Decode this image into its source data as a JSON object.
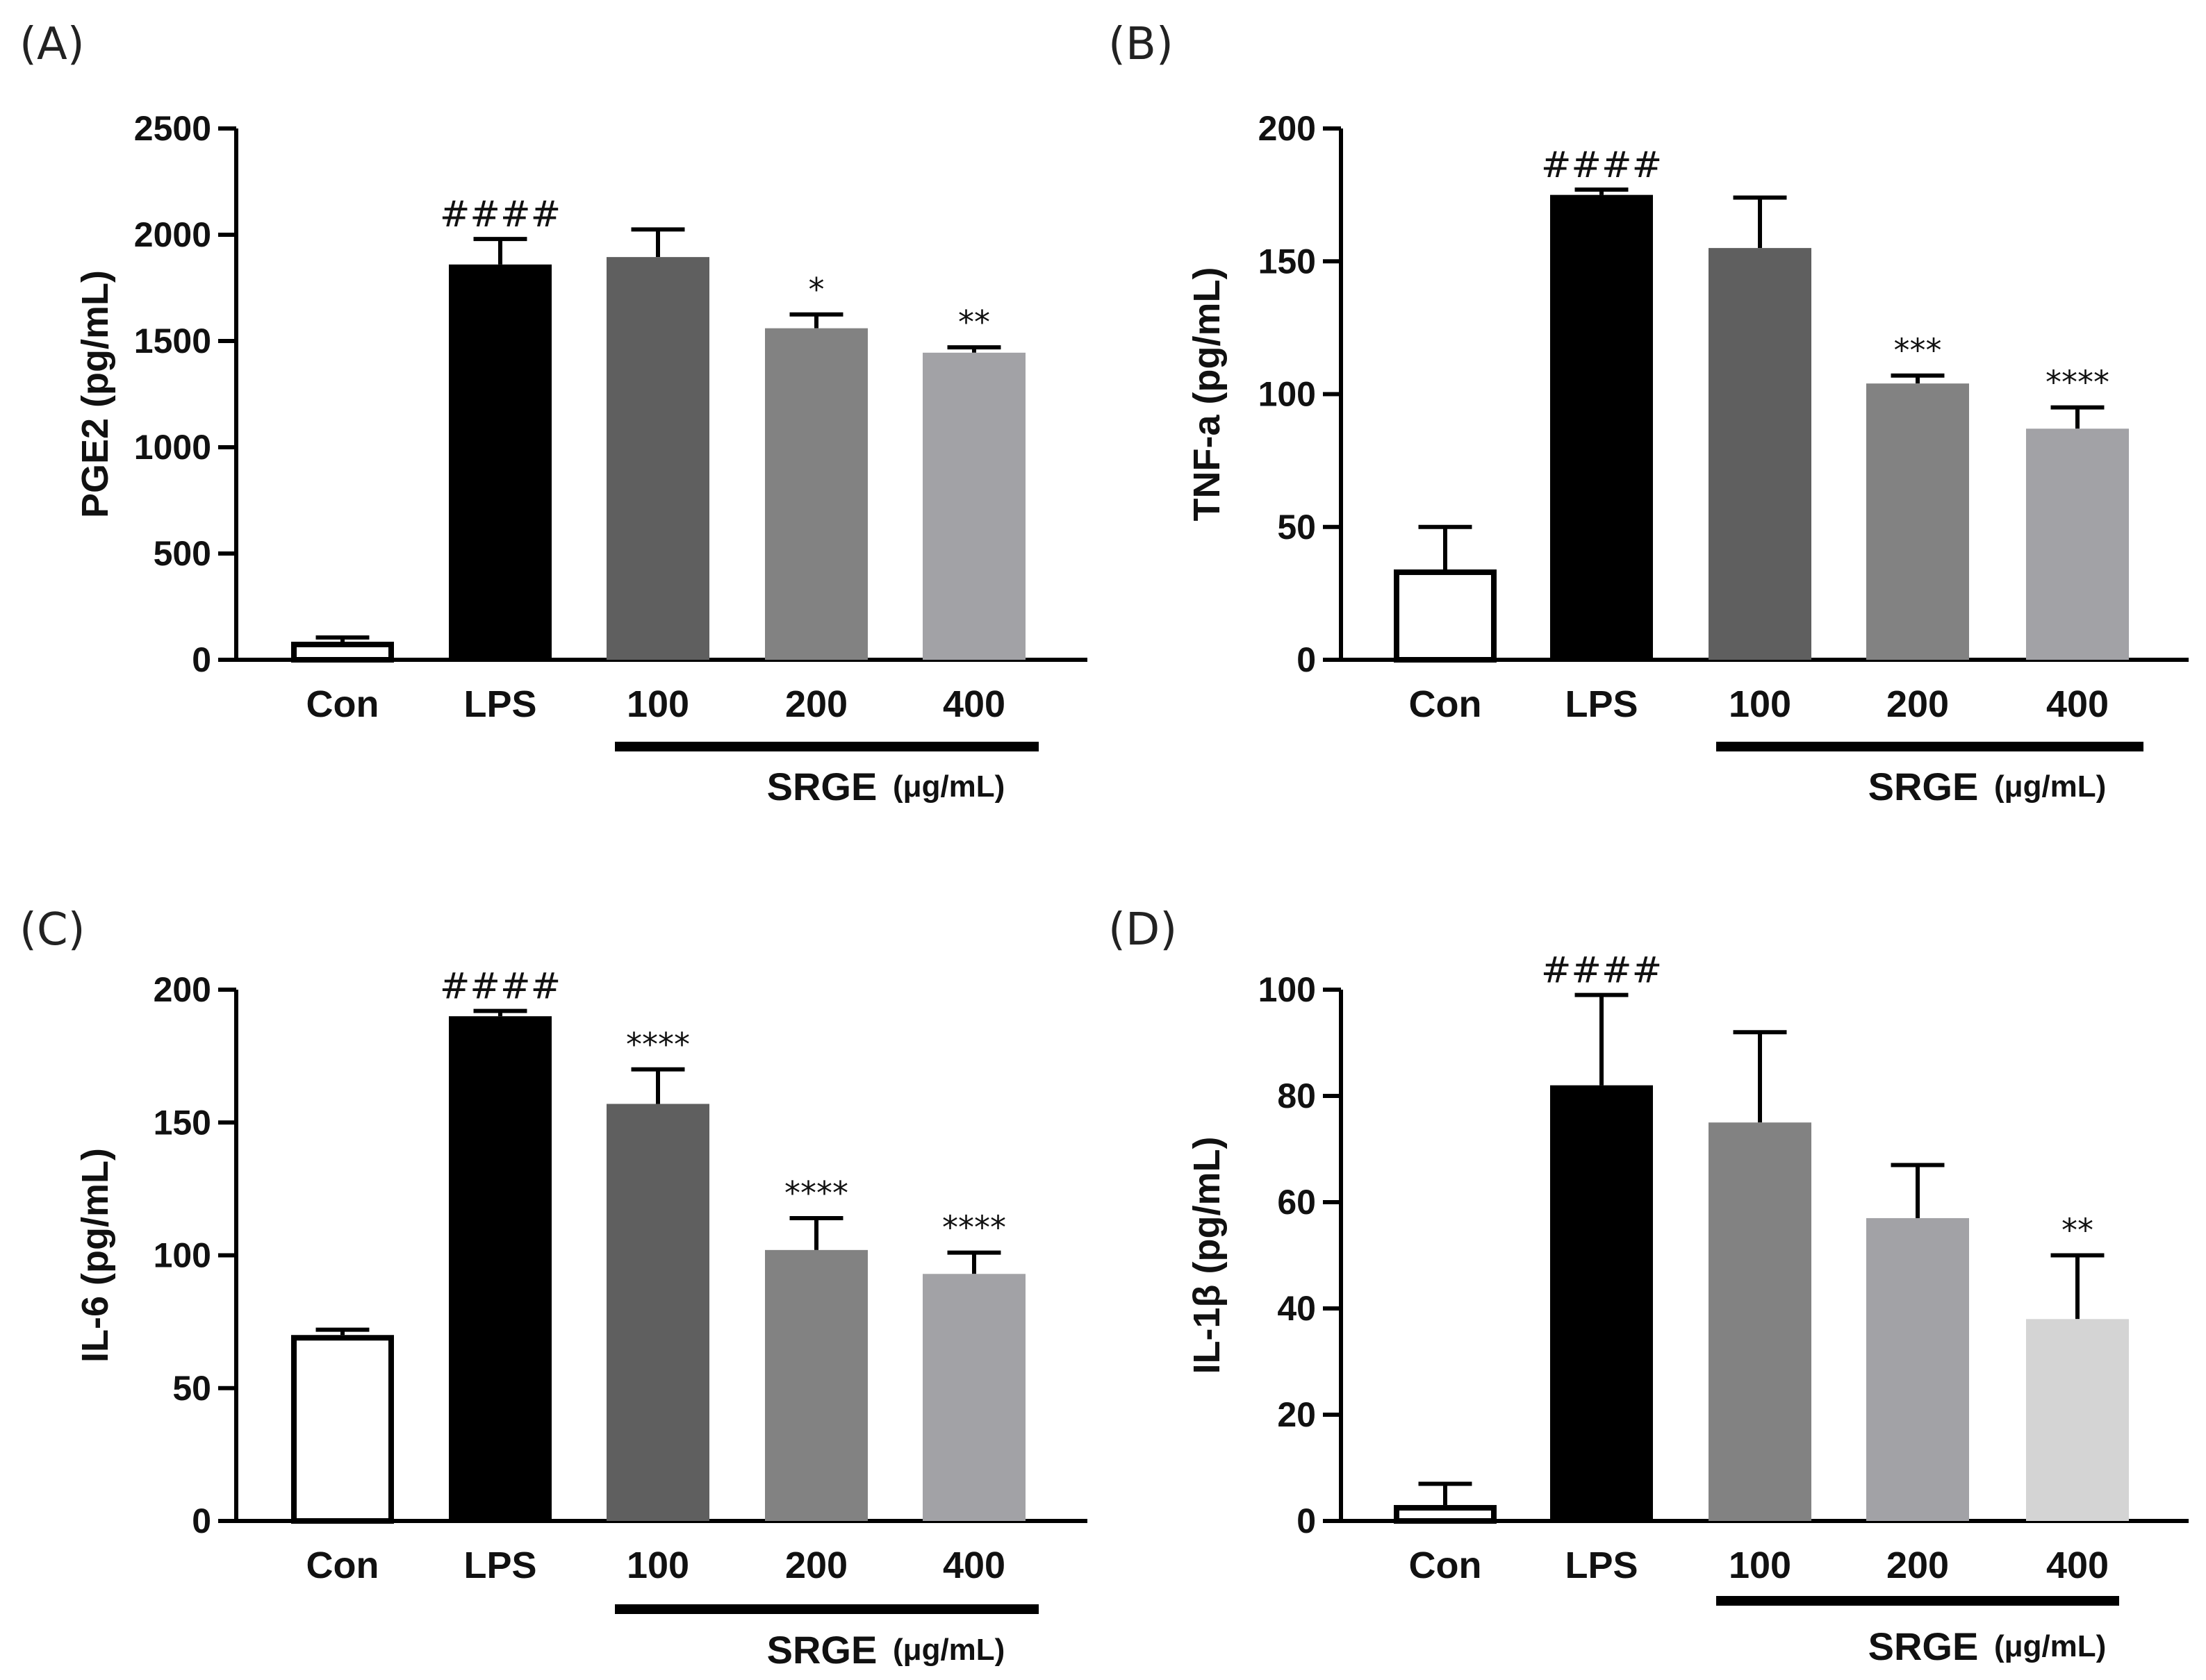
{
  "chart_data": [
    {
      "type": "bar",
      "panel": "(A)",
      "categories": [
        "Con",
        "LPS",
        "100",
        "200",
        "400"
      ],
      "values": [
        85,
        1860,
        1895,
        1560,
        1445
      ],
      "errors": [
        20,
        120,
        130,
        65,
        25
      ],
      "annotations": [
        "",
        "####",
        "",
        "*",
        "**"
      ],
      "bar_colors": [
        "#ffffff",
        "#000000",
        "#5f5f5f",
        "#828282",
        "#a2a2a6"
      ],
      "ylabel": "PGE2 (pg/mL)",
      "ylim": [
        0,
        2500
      ],
      "yticks": [
        0,
        500,
        1000,
        1500,
        2000,
        2500
      ],
      "group_label": "SRGE",
      "group_unit": "(μg/mL)"
    },
    {
      "type": "bar",
      "panel": "(B)",
      "categories": [
        "Con",
        "LPS",
        "100",
        "200",
        "400"
      ],
      "values": [
        34,
        175,
        155,
        104,
        87
      ],
      "errors": [
        16,
        2,
        19,
        3,
        8
      ],
      "annotations": [
        "",
        "####",
        "",
        "***",
        "****"
      ],
      "bar_colors": [
        "#ffffff",
        "#000000",
        "#5f5f5f",
        "#828282",
        "#a2a2a6"
      ],
      "ylabel": "TNF-a (pg/mL)",
      "ylim": [
        0,
        200
      ],
      "yticks": [
        0,
        50,
        100,
        150,
        200
      ],
      "group_label": "SRGE",
      "group_unit": "(μg/mL)"
    },
    {
      "type": "bar",
      "panel": "(C)",
      "categories": [
        "Con",
        "LPS",
        "100",
        "200",
        "400"
      ],
      "values": [
        70,
        190,
        157,
        102,
        93
      ],
      "errors": [
        2,
        2,
        13,
        12,
        8
      ],
      "annotations": [
        "",
        "####",
        "****",
        "****",
        "****"
      ],
      "bar_colors": [
        "#ffffff",
        "#000000",
        "#5f5f5f",
        "#828282",
        "#a2a2a6"
      ],
      "ylabel": "IL-6 (pg/mL)",
      "ylim": [
        0,
        200
      ],
      "yticks": [
        0,
        50,
        100,
        150,
        200
      ],
      "group_label": "SRGE",
      "group_unit": "(μg/mL)"
    },
    {
      "type": "bar",
      "panel": "(D)",
      "categories": [
        "Con",
        "LPS",
        "100",
        "200",
        "400"
      ],
      "values": [
        3,
        82,
        75,
        57,
        38
      ],
      "errors": [
        4,
        17,
        17,
        10,
        12
      ],
      "annotations": [
        "",
        "####",
        "",
        "",
        "**"
      ],
      "bar_colors": [
        "#ffffff",
        "#000000",
        "#828282",
        "#a2a2a6",
        "#d4d4d4"
      ],
      "ylabel": "IL-1β  (pg/mL)",
      "ylim": [
        0,
        100
      ],
      "yticks": [
        0,
        20,
        40,
        60,
        80,
        100
      ],
      "group_label": "SRGE",
      "group_unit": "(μg/mL)"
    }
  ]
}
